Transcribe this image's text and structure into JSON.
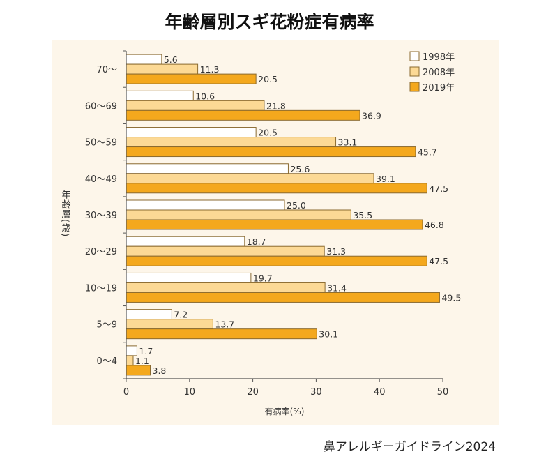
{
  "title": "年齢層別スギ花粉症有病率",
  "source": "鼻アレルギーガイドライン2024",
  "chart_data": {
    "type": "bar",
    "orientation": "horizontal",
    "categories": [
      "70〜",
      "60〜69",
      "50〜59",
      "40〜49",
      "30〜39",
      "20〜29",
      "10〜19",
      "5〜9",
      "0〜4"
    ],
    "series": [
      {
        "name": "1998年",
        "color": "#ffffff",
        "values": [
          5.6,
          10.6,
          20.5,
          25.6,
          25.0,
          18.7,
          19.7,
          7.2,
          1.7
        ]
      },
      {
        "name": "2008年",
        "color": "#fcd995",
        "values": [
          11.3,
          21.8,
          33.1,
          39.1,
          35.5,
          31.3,
          31.4,
          13.7,
          1.1
        ]
      },
      {
        "name": "2019年",
        "color": "#f4a81d",
        "values": [
          20.5,
          36.9,
          45.7,
          47.5,
          46.8,
          47.5,
          49.5,
          30.1,
          3.8
        ]
      }
    ],
    "xlabel": "有病率(%)",
    "ylabel": "年齢層(歳)",
    "xlim": [
      0,
      50
    ],
    "xticks": [
      "0",
      "10",
      "20",
      "30",
      "40",
      "50"
    ],
    "grid": false,
    "legend": "top-right",
    "data_labels": true
  }
}
